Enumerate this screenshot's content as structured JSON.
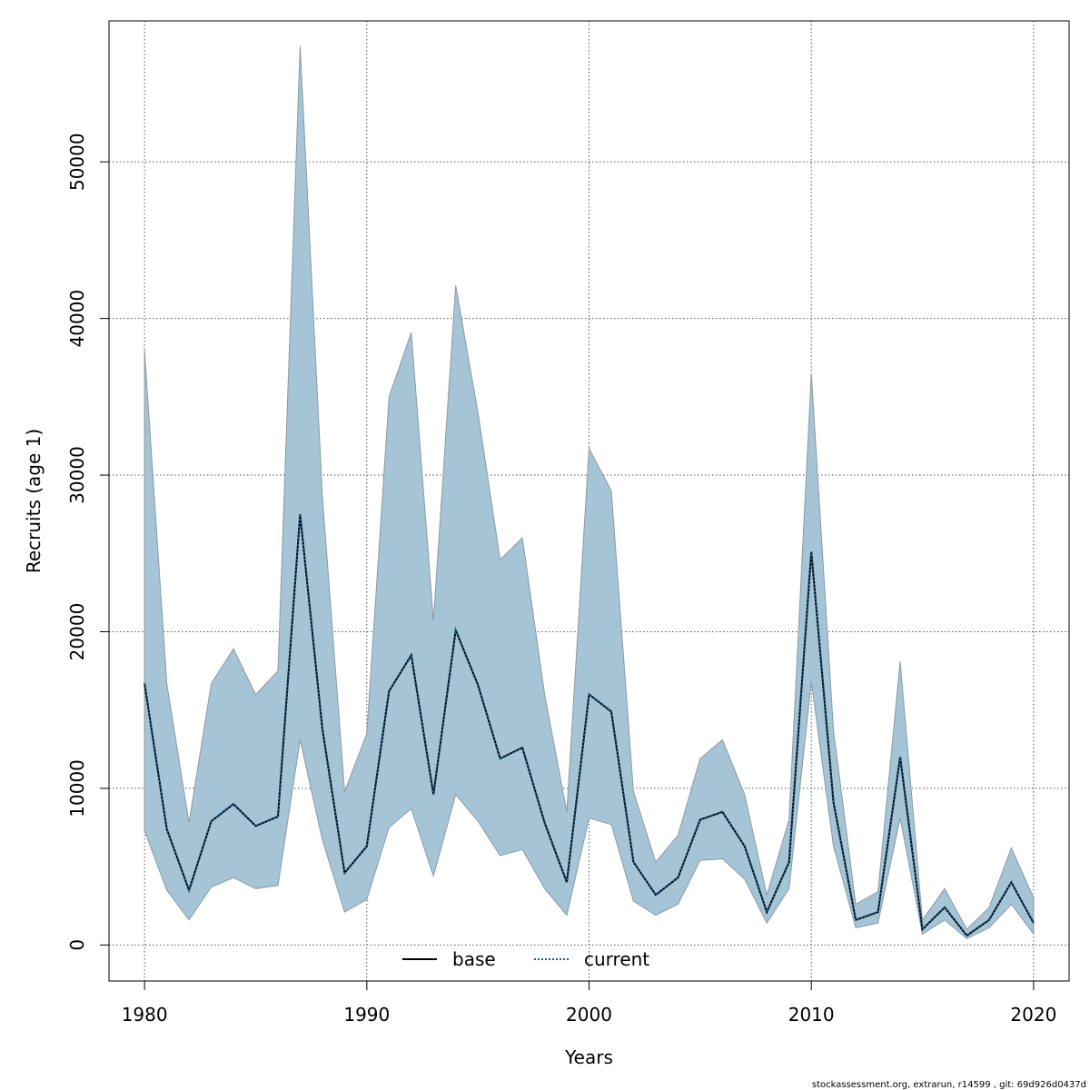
{
  "chart_data": {
    "type": "line",
    "xlabel": "Years",
    "ylabel": "Recruits (age 1)",
    "xlim": [
      1978.4,
      2021.6
    ],
    "ylim": [
      -2300,
      59000
    ],
    "x_ticks": [
      1980,
      1990,
      2000,
      2010,
      2020
    ],
    "y_ticks": [
      0,
      10000,
      20000,
      30000,
      40000,
      50000
    ],
    "grid": true,
    "legend_position": "bottom",
    "band_color": "#a5c4d5",
    "band_edge_color": "#8c9aa5",
    "x": [
      1980,
      1981,
      1982,
      1983,
      1984,
      1985,
      1986,
      1987,
      1988,
      1989,
      1990,
      1991,
      1992,
      1993,
      1994,
      1995,
      1996,
      1997,
      1998,
      1999,
      2000,
      2001,
      2002,
      2003,
      2004,
      2005,
      2006,
      2007,
      2008,
      2009,
      2010,
      2011,
      2012,
      2013,
      2014,
      2015,
      2016,
      2017,
      2018,
      2019,
      2020
    ],
    "band": {
      "upper": [
        38000,
        16700,
        7800,
        16700,
        18900,
        16000,
        17500,
        57400,
        28700,
        9800,
        13500,
        35000,
        39100,
        20700,
        42100,
        34000,
        24600,
        26000,
        16000,
        8500,
        31700,
        29000,
        9800,
        5300,
        7000,
        11900,
        13100,
        9600,
        3200,
        8000,
        36500,
        13700,
        2600,
        3400,
        18100,
        1600,
        3600,
        1000,
        2400,
        6200,
        3000
      ],
      "lower": [
        7300,
        3500,
        1600,
        3700,
        4300,
        3600,
        3800,
        13100,
        6700,
        2100,
        2900,
        7500,
        8700,
        4400,
        9600,
        7900,
        5700,
        6100,
        3600,
        1900,
        8100,
        7700,
        2800,
        1900,
        2600,
        5400,
        5500,
        4200,
        1400,
        3600,
        16800,
        6300,
        1100,
        1400,
        8100,
        700,
        1600,
        400,
        1100,
        2600,
        700
      ]
    },
    "series": [
      {
        "name": "base",
        "color": "#000000",
        "values": [
          16700,
          7400,
          3500,
          7900,
          9000,
          7600,
          8200,
          27500,
          13800,
          4600,
          6300,
          16200,
          18500,
          9600,
          20100,
          16600,
          11900,
          12600,
          7800,
          4000,
          16000,
          14900,
          5300,
          3200,
          4300,
          8000,
          8500,
          6300,
          2100,
          5300,
          25100,
          9100,
          1600,
          2100,
          12000,
          1000,
          2400,
          600,
          1600,
          4000,
          1400
        ]
      },
      {
        "name": "current",
        "color": "#1a5e8a",
        "values": [
          16700,
          7400,
          3500,
          7900,
          9000,
          7600,
          8200,
          27500,
          13800,
          4600,
          6300,
          16200,
          18500,
          9600,
          20100,
          16600,
          11900,
          12600,
          7800,
          4000,
          16000,
          14900,
          5300,
          3200,
          4300,
          8000,
          8500,
          6300,
          2100,
          5300,
          25100,
          9100,
          1600,
          2100,
          12000,
          1000,
          2400,
          600,
          1600,
          4000,
          1400
        ]
      }
    ]
  },
  "footer_note": "stockassessment.org, extrarun, r14599 , git: 69d926d0437d"
}
